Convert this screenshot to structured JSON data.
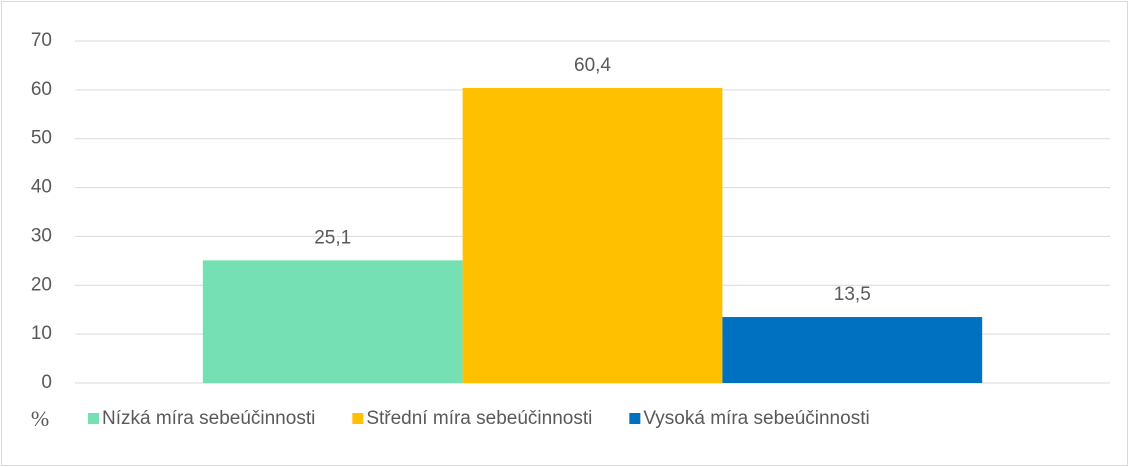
{
  "chart_data": {
    "type": "bar",
    "categories": [
      null
    ],
    "series": [
      {
        "name": "Nízká míra sebeúčinnosti",
        "color": "#76e0b5",
        "values": [
          25.1
        ],
        "value_labels": [
          "25,1"
        ]
      },
      {
        "name": "Střední míra sebeúčinnosti",
        "color": "#ffc000",
        "values": [
          60.4
        ],
        "value_labels": [
          "60,4"
        ]
      },
      {
        "name": "Vysoká míra sebeúčinnosti",
        "color": "#0070c0",
        "values": [
          13.5
        ],
        "value_labels": [
          "13,5"
        ]
      }
    ],
    "ylabel": "%",
    "ylim": [
      0,
      70
    ],
    "yticks": [
      0,
      10,
      20,
      30,
      40,
      50,
      60,
      70
    ],
    "grid": true,
    "legend": "bottom"
  }
}
